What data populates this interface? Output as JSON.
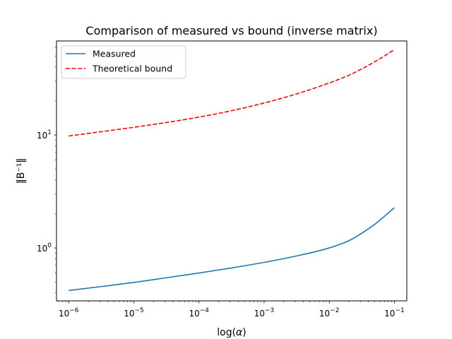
{
  "chart_data": {
    "type": "line",
    "title": "Comparison of measured vs bound (inverse matrix)",
    "xlabel_prefix": "log(",
    "xlabel_symbol": "α",
    "xlabel_suffix": ")",
    "ylabel": "‖B⁻¹‖",
    "xscale": "log",
    "yscale": "log",
    "xlim": [
      6.5e-07,
      0.155
    ],
    "ylim": [
      0.34,
      68
    ],
    "legend_position": "top-left",
    "grid": false,
    "x_ticks": [
      {
        "value": 1e-06,
        "base": "10",
        "exp": "−6"
      },
      {
        "value": 1e-05,
        "base": "10",
        "exp": "−5"
      },
      {
        "value": 0.0001,
        "base": "10",
        "exp": "−4"
      },
      {
        "value": 0.001,
        "base": "10",
        "exp": "−3"
      },
      {
        "value": 0.01,
        "base": "10",
        "exp": "−2"
      },
      {
        "value": 0.1,
        "base": "10",
        "exp": "−1"
      }
    ],
    "y_ticks": [
      {
        "value": 1,
        "base": "10",
        "exp": "0"
      },
      {
        "value": 10,
        "base": "10",
        "exp": "1"
      }
    ],
    "series": [
      {
        "name": "Measured",
        "color": "#1f77b4",
        "style": "solid",
        "x": [
          1e-06,
          3.16e-06,
          1e-05,
          3.16e-05,
          0.0001,
          0.000316,
          0.001,
          0.00316,
          0.01,
          0.02,
          0.0316,
          0.05,
          0.07,
          0.1
        ],
        "y": [
          0.42,
          0.455,
          0.495,
          0.545,
          0.6,
          0.665,
          0.745,
          0.85,
          1.0,
          1.16,
          1.35,
          1.62,
          1.9,
          2.27
        ]
      },
      {
        "name": "Theoretical bound",
        "color": "#ff0000",
        "style": "dashed",
        "x": [
          1e-06,
          3.16e-06,
          1e-05,
          3.16e-05,
          0.0001,
          0.000316,
          0.001,
          0.00316,
          0.01,
          0.02,
          0.0316,
          0.05,
          0.07,
          0.1
        ],
        "y": [
          9.8,
          10.7,
          11.7,
          12.9,
          14.4,
          16.4,
          19.2,
          23.1,
          28.9,
          33.8,
          38.5,
          44.5,
          50.0,
          57.0
        ]
      }
    ]
  }
}
